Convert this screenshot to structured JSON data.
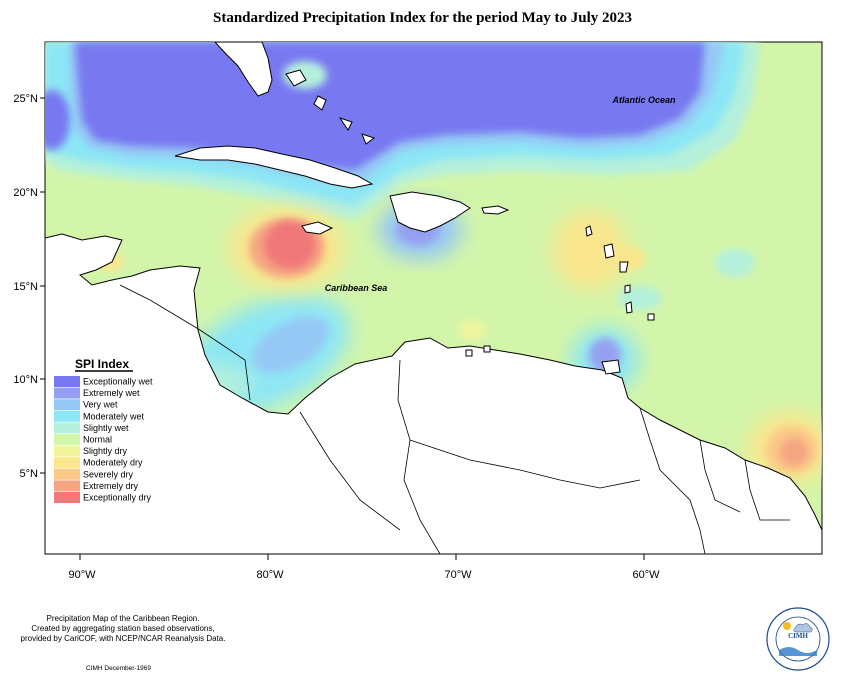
{
  "title": "Standardized Precipitation Index for the period May to July 2023",
  "labels": {
    "atlantic": "Atlantic Ocean",
    "caribbean": "Caribbean Sea"
  },
  "lat_ticks": [
    "25°N",
    "20°N",
    "15°N",
    "10°N",
    "5°N"
  ],
  "lon_ticks": [
    "90°W",
    "80°W",
    "70°W",
    "60°W"
  ],
  "legend": {
    "title": "SPI Index",
    "items": [
      {
        "label": "Exceptionally wet",
        "color": "#7878f0"
      },
      {
        "label": "Extremely wet",
        "color": "#96a0f0"
      },
      {
        "label": "Very wet",
        "color": "#96c8f5"
      },
      {
        "label": "Moderately wet",
        "color": "#8ce6f5"
      },
      {
        "label": "Slightly wet",
        "color": "#b4f0dc"
      },
      {
        "label": "Normal",
        "color": "#d2f5aa"
      },
      {
        "label": "Slightly dry",
        "color": "#f0f59b"
      },
      {
        "label": "Moderately dry",
        "color": "#fae68c"
      },
      {
        "label": "Severely dry",
        "color": "#fac887"
      },
      {
        "label": "Extremely dry",
        "color": "#f5a582"
      },
      {
        "label": "Exceptionally dry",
        "color": "#f07878"
      }
    ]
  },
  "credits": {
    "line1": "Precipitation Map of the Caribbean Region.",
    "line2": "Created by aggregating station based observations,",
    "line3": "provided by CariCOF, with NCEP/NCAR Reanalysis Data."
  },
  "date_note": "CIMH December-1969",
  "logo": {
    "name": "CIMH"
  }
}
